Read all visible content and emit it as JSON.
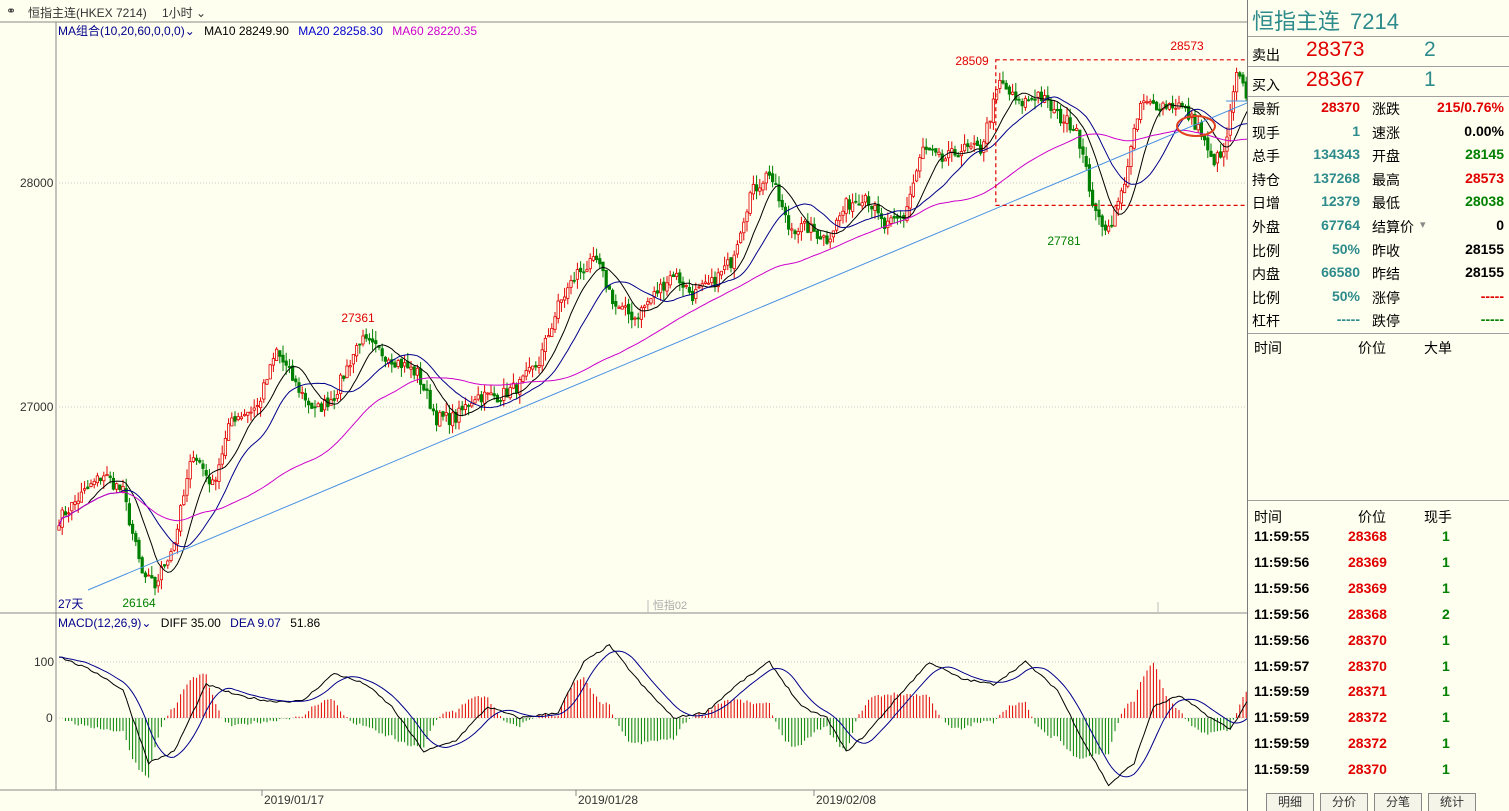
{
  "header": {
    "title": "恒指主连(HKEX 7214)",
    "period": "1小时",
    "period_arrow": "⌄",
    "icon": "link-icon"
  },
  "ma_legend": {
    "group": "MA组合(10,20,60,0,0,0)",
    "ma10": "MA10 28249.90",
    "ma20": "MA20 28258.30",
    "ma60": "MA60 28220.35",
    "colors": {
      "group": "#00008B",
      "ma10": "#000000",
      "ma20": "#0000CD",
      "ma60": "#CC00CC"
    }
  },
  "macd_legend": {
    "name": "MACD(12,26,9)",
    "diff": "DIFF 35.00",
    "dea": "DEA 9.07",
    "macd": "51.86"
  },
  "colors": {
    "up": "#E00000",
    "down": "#008000",
    "ma10": "#000000",
    "ma20": "#00008B",
    "ma60": "#CC00CC",
    "trend": "#4A90E2",
    "grid": "#C8C8C8"
  },
  "chart_data": {
    "type": "candlestick",
    "price_ticks": [
      28000,
      27000
    ],
    "macd_ticks": [
      100,
      0
    ],
    "x_labels": [
      "2019/01/17",
      "2019/01/28",
      "2019/02/08"
    ],
    "annotations": [
      {
        "text": "28573",
        "color": "#E00000"
      },
      {
        "text": "28509",
        "color": "#E00000"
      },
      {
        "text": "27361",
        "color": "#E00000"
      },
      {
        "text": "27781",
        "color": "#008000"
      },
      {
        "text": "26164",
        "color": "#008000"
      }
    ],
    "bottom_left_label": "27天",
    "watermark": "恒指02",
    "price_anchors": [
      [
        0,
        26500
      ],
      [
        8,
        26620
      ],
      [
        14,
        26700
      ],
      [
        20,
        26620
      ],
      [
        26,
        26250
      ],
      [
        30,
        26200
      ],
      [
        36,
        26400
      ],
      [
        42,
        26800
      ],
      [
        48,
        26650
      ],
      [
        54,
        26950
      ],
      [
        62,
        27000
      ],
      [
        68,
        27250
      ],
      [
        74,
        27100
      ],
      [
        80,
        26980
      ],
      [
        86,
        27050
      ],
      [
        94,
        27300
      ],
      [
        100,
        27250
      ],
      [
        106,
        27200
      ],
      [
        112,
        27150
      ],
      [
        118,
        26950
      ],
      [
        124,
        26950
      ],
      [
        130,
        27050
      ],
      [
        138,
        27050
      ],
      [
        144,
        27100
      ],
      [
        150,
        27200
      ],
      [
        156,
        27450
      ],
      [
        162,
        27600
      ],
      [
        168,
        27650
      ],
      [
        174,
        27450
      ],
      [
        180,
        27400
      ],
      [
        186,
        27500
      ],
      [
        192,
        27600
      ],
      [
        198,
        27500
      ],
      [
        204,
        27550
      ],
      [
        210,
        27650
      ],
      [
        216,
        27950
      ],
      [
        222,
        28050
      ],
      [
        228,
        27800
      ],
      [
        234,
        27800
      ],
      [
        240,
        27750
      ],
      [
        246,
        27900
      ],
      [
        252,
        27950
      ],
      [
        258,
        27800
      ],
      [
        264,
        27850
      ],
      [
        270,
        28150
      ],
      [
        276,
        28100
      ],
      [
        282,
        28150
      ],
      [
        288,
        28150
      ],
      [
        294,
        28450
      ],
      [
        300,
        28350
      ],
      [
        306,
        28400
      ],
      [
        312,
        28300
      ],
      [
        318,
        28250
      ],
      [
        324,
        27850
      ],
      [
        328,
        27800
      ],
      [
        332,
        27950
      ],
      [
        338,
        28350
      ],
      [
        344,
        28350
      ],
      [
        350,
        28350
      ],
      [
        356,
        28250
      ],
      [
        360,
        28100
      ],
      [
        364,
        28120
      ],
      [
        368,
        28480
      ],
      [
        372,
        28370
      ]
    ],
    "macd_diff_anchors": [
      [
        0,
        110
      ],
      [
        12,
        80
      ],
      [
        20,
        50
      ],
      [
        28,
        -80
      ],
      [
        36,
        -60
      ],
      [
        46,
        60
      ],
      [
        56,
        40
      ],
      [
        66,
        30
      ],
      [
        76,
        30
      ],
      [
        86,
        80
      ],
      [
        96,
        60
      ],
      [
        104,
        20
      ],
      [
        114,
        -60
      ],
      [
        124,
        -40
      ],
      [
        134,
        20
      ],
      [
        144,
        0
      ],
      [
        156,
        10
      ],
      [
        164,
        100
      ],
      [
        172,
        130
      ],
      [
        182,
        60
      ],
      [
        192,
        0
      ],
      [
        202,
        10
      ],
      [
        212,
        60
      ],
      [
        222,
        100
      ],
      [
        232,
        20
      ],
      [
        240,
        0
      ],
      [
        246,
        -60
      ],
      [
        252,
        -30
      ],
      [
        264,
        50
      ],
      [
        272,
        100
      ],
      [
        282,
        70
      ],
      [
        292,
        60
      ],
      [
        302,
        100
      ],
      [
        312,
        50
      ],
      [
        320,
        -40
      ],
      [
        328,
        -120
      ],
      [
        336,
        -80
      ],
      [
        342,
        20
      ],
      [
        350,
        40
      ],
      [
        360,
        0
      ],
      [
        366,
        -20
      ],
      [
        372,
        35
      ]
    ],
    "boxed_range": {
      "x_start": 294,
      "x_end": 372,
      "y_low": 27900,
      "y_high": 28550
    }
  },
  "quote": {
    "name": "恒指主连",
    "code": "7214",
    "sell_label": "卖出",
    "sell_price": "28373",
    "sell_vol": "2",
    "buy_label": "买入",
    "buy_price": "28367",
    "buy_vol": "1"
  },
  "stats": [
    {
      "l1": "最新",
      "v1": "28370",
      "c1": "#E00000",
      "l2": "涨跌",
      "v2": "215/0.76%",
      "c2": "#E00000"
    },
    {
      "l1": "现手",
      "v1": "1",
      "c1": "#2E8B8B",
      "l2": "速涨",
      "v2": "0.00%",
      "c2": "#000000"
    },
    {
      "l1": "总手",
      "v1": "134343",
      "c1": "#2E8B8B",
      "l2": "开盘",
      "v2": "28145",
      "c2": "#008000"
    },
    {
      "l1": "持仓",
      "v1": "137268",
      "c1": "#2E8B8B",
      "l2": "最高",
      "v2": "28573",
      "c2": "#E00000"
    },
    {
      "l1": "日增",
      "v1": "12379",
      "c1": "#2E8B8B",
      "l2": "最低",
      "v2": "28038",
      "c2": "#008000"
    },
    {
      "l1": "外盘",
      "v1": "67764",
      "c1": "#2E8B8B",
      "l2": "结算价",
      "v2": "0",
      "c2": "#000000"
    },
    {
      "l1": "比例",
      "v1": "50%",
      "c1": "#2E8B8B",
      "l2": "昨收",
      "v2": "28155",
      "c2": "#000000"
    },
    {
      "l1": "内盘",
      "v1": "66580",
      "c1": "#2E8B8B",
      "l2": "昨结",
      "v2": "28155",
      "c2": "#000000"
    },
    {
      "l1": "比例",
      "v1": "50%",
      "c1": "#2E8B8B",
      "l2": "涨停",
      "v2": "-----",
      "c2": "#E00000"
    },
    {
      "l1": "杠杆",
      "v1": "-----",
      "c1": "#2E8B8B",
      "l2": "跌停",
      "v2": "-----",
      "c2": "#008000"
    }
  ],
  "settle_arrow": "▾",
  "big_order_header": {
    "time": "时间",
    "price": "价位",
    "big": "大单"
  },
  "ticks_header": {
    "time": "时间",
    "price": "价位",
    "vol": "现手"
  },
  "ticks": [
    {
      "time": "11:59:55",
      "price": "28368",
      "vol": "1"
    },
    {
      "time": "11:59:56",
      "price": "28369",
      "vol": "1"
    },
    {
      "time": "11:59:56",
      "price": "28369",
      "vol": "1"
    },
    {
      "time": "11:59:56",
      "price": "28368",
      "vol": "2"
    },
    {
      "time": "11:59:56",
      "price": "28370",
      "vol": "1"
    },
    {
      "time": "11:59:57",
      "price": "28370",
      "vol": "1"
    },
    {
      "time": "11:59:59",
      "price": "28371",
      "vol": "1"
    },
    {
      "time": "11:59:59",
      "price": "28372",
      "vol": "1"
    },
    {
      "time": "11:59:59",
      "price": "28372",
      "vol": "1"
    },
    {
      "time": "11:59:59",
      "price": "28370",
      "vol": "1"
    }
  ],
  "tabs": [
    "明细",
    "分价",
    "分笔",
    "统计"
  ]
}
